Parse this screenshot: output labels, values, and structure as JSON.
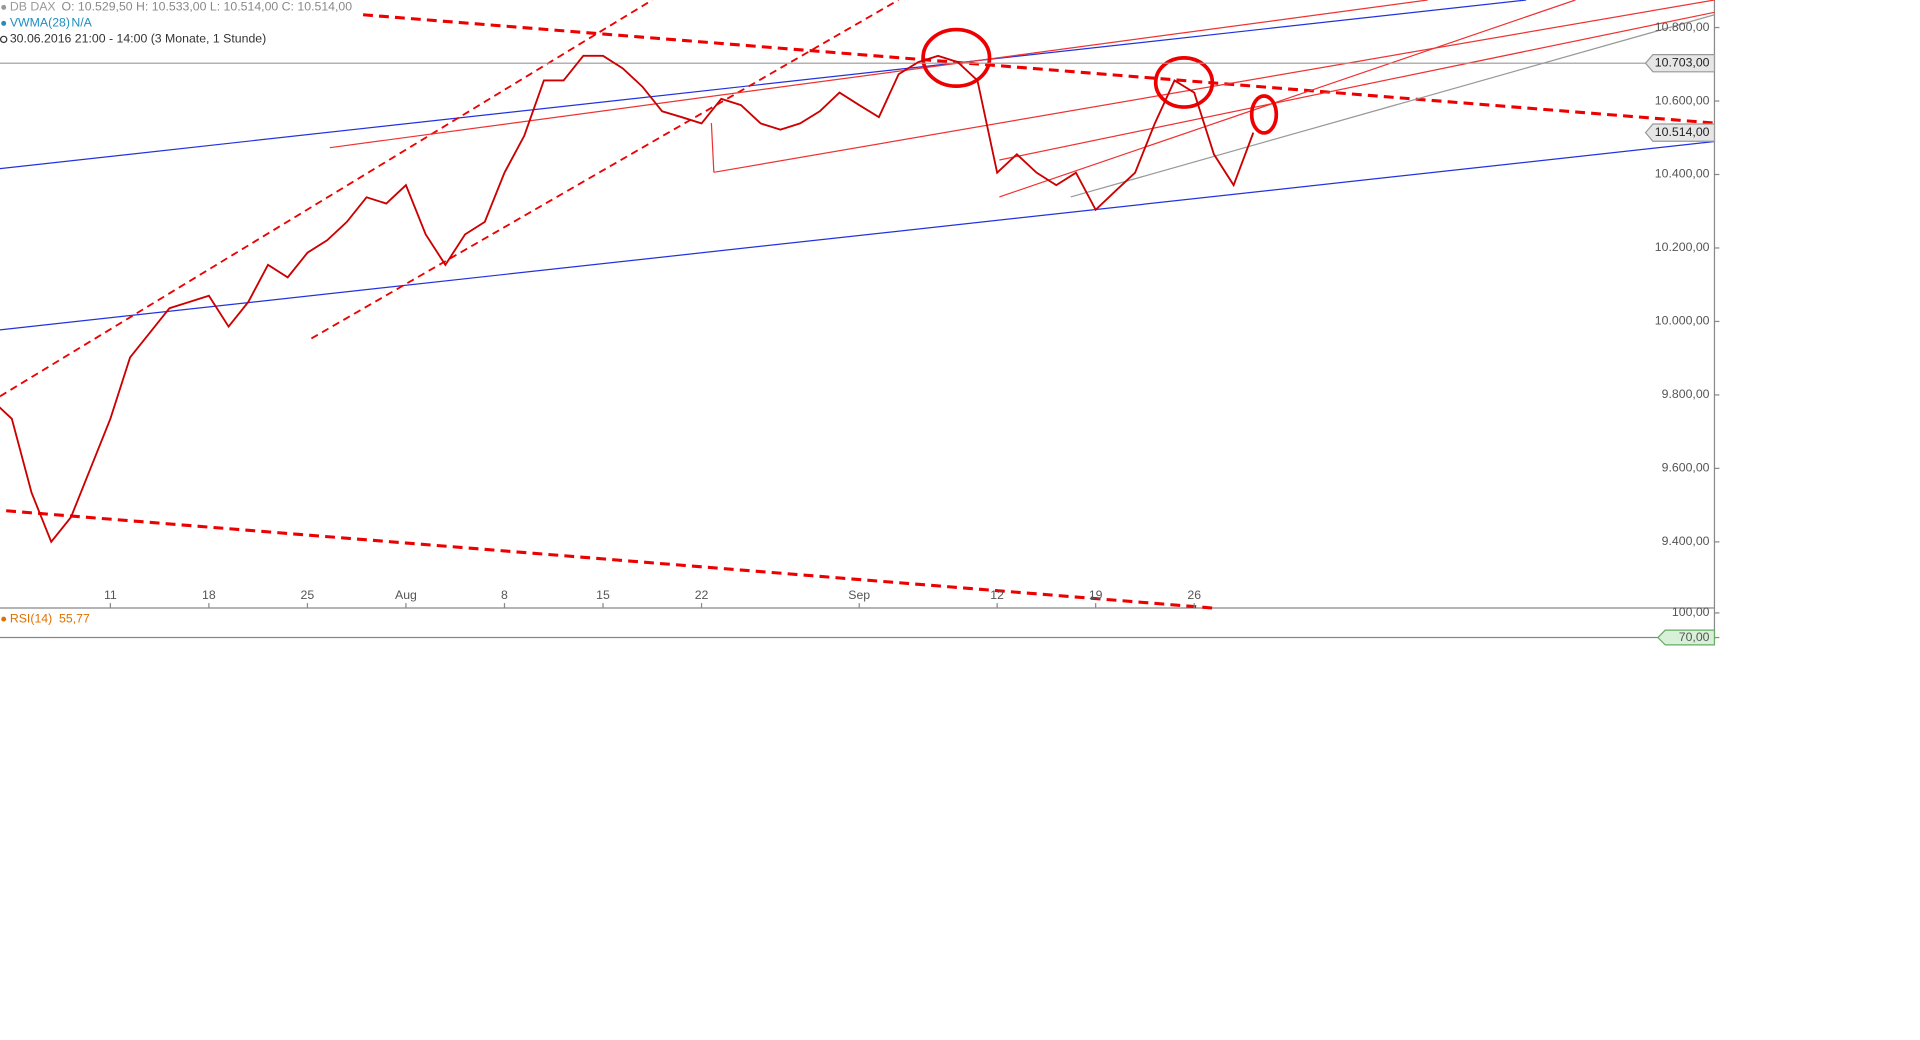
{
  "chart_data": {
    "type": "line",
    "title": "DB DAX",
    "ohlc_text": "O: 10.529,50  H: 10.533,00  L: 10.514,00  C: 10.514,00",
    "indicator": "VWMA(28)",
    "indicator_value": "N/A",
    "period": "30.06.2016 21:00 - 14:00 (3 Monate, 1 Stunde)",
    "color": "#cc0000",
    "x": [
      0,
      1,
      2,
      3,
      4,
      5,
      6,
      7,
      8,
      9,
      10,
      11,
      12,
      13,
      14,
      15,
      16,
      17,
      18,
      19,
      20,
      21,
      22,
      23,
      24,
      25,
      26,
      27,
      28,
      29,
      30,
      31,
      32,
      33,
      34,
      35,
      36,
      37,
      38,
      39,
      40,
      41,
      42,
      43,
      44,
      45,
      46,
      47,
      48,
      49,
      50,
      51,
      52,
      53,
      54,
      55,
      56,
      57,
      58,
      59,
      60,
      61,
      62,
      63,
      64
    ],
    "values": [
      9785,
      9735,
      9534,
      9400,
      9467,
      9601,
      9735,
      9902,
      9969,
      10036,
      10053,
      10070,
      9986,
      10053,
      10154,
      10120,
      10187,
      10221,
      10271,
      10338,
      10321,
      10371,
      10237,
      10154,
      10237,
      10271,
      10405,
      10505,
      10656,
      10656,
      10723,
      10723,
      10689,
      10639,
      10572,
      10556,
      10539,
      10606,
      10589,
      10539,
      10522,
      10539,
      10572,
      10623,
      10589,
      10556,
      10673,
      10706,
      10723,
      10706,
      10656,
      10405,
      10455,
      10405,
      10371,
      10405,
      10304,
      10355,
      10405,
      10539,
      10656,
      10623,
      10455,
      10371,
      10514
    ],
    "xlim": [
      0.4,
      87.4
    ],
    "xticks": [
      {
        "value": 6,
        "label": "11"
      },
      {
        "value": 11,
        "label": "18"
      },
      {
        "value": 16,
        "label": "25"
      },
      {
        "value": 21,
        "label": "Aug"
      },
      {
        "value": 26,
        "label": "8"
      },
      {
        "value": 31,
        "label": "15"
      },
      {
        "value": 36,
        "label": "22"
      },
      {
        "value": 44,
        "label": "Sep"
      },
      {
        "value": 51,
        "label": "12"
      },
      {
        "value": 56,
        "label": "19"
      },
      {
        "value": 61,
        "label": "26"
      }
    ],
    "ylim": [
      9220,
      10875
    ],
    "yticks": [
      {
        "value": 9400,
        "label": "9.400,00"
      },
      {
        "value": 9600,
        "label": "9.600,00"
      },
      {
        "value": 9800,
        "label": "9.800,00"
      },
      {
        "value": 10000,
        "label": "10.000,00"
      },
      {
        "value": 10200,
        "label": "10.200,00"
      },
      {
        "value": 10400,
        "label": "10.400,00"
      },
      {
        "value": 10600,
        "label": "10.600,00"
      },
      {
        "value": 10800,
        "label": "10.800,00"
      }
    ],
    "price_markers": [
      {
        "value": 10703,
        "label": "10.703,00"
      },
      {
        "value": 10514,
        "label": "10.514,00"
      }
    ],
    "rsi": {
      "title": "RSI(14)",
      "value": 55.77,
      "value_label": "55,77",
      "ylim": [
        70,
        100
      ],
      "yticks": [
        {
          "value": 100,
          "label": "100,00"
        },
        {
          "value": 70,
          "label": "70,00"
        }
      ]
    }
  }
}
